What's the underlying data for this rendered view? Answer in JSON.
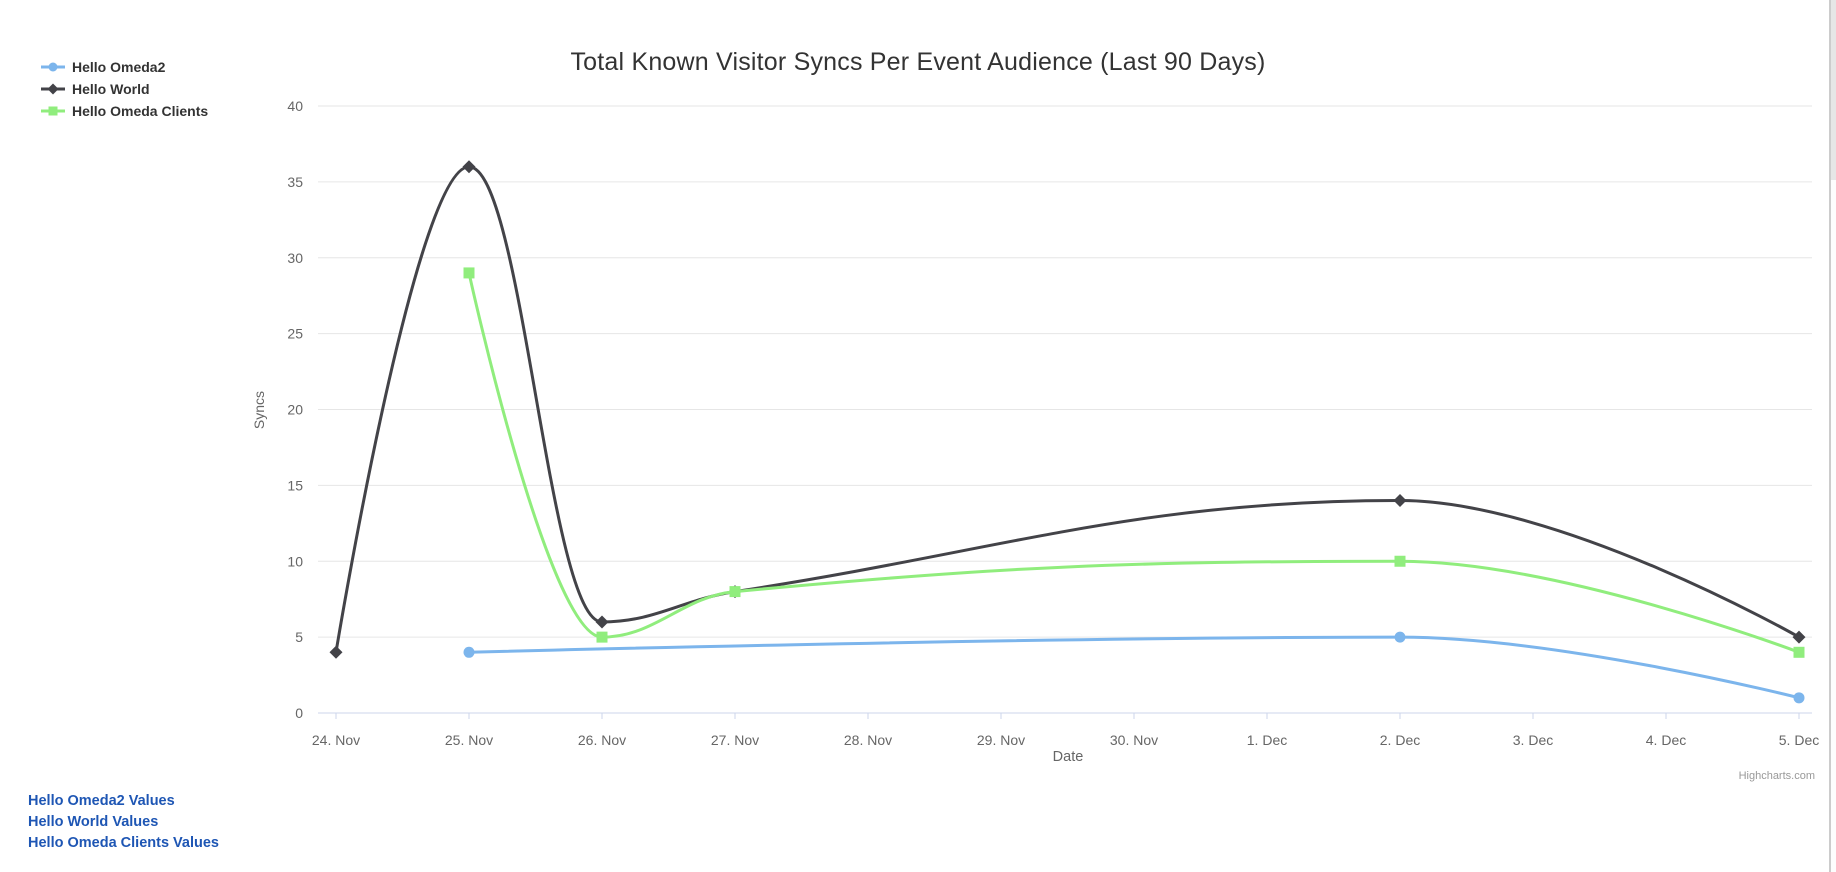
{
  "chart": {
    "credits": "Highcharts.com",
    "colors": {
      "background": "#ffffff",
      "title": "#333333",
      "axis_labels": "#666666",
      "axis_titles": "#666666",
      "axis_line": "#ccd6eb",
      "gridline": "#e6e6e6",
      "credits": "#999999",
      "legend_text": "#333333",
      "link": "#1e56b4"
    }
  },
  "chart_data": {
    "type": "line",
    "line_style": "spline",
    "title": "Total Known Visitor Syncs Per Event Audience (Last 90 Days)",
    "xlabel": "Date",
    "ylabel": "Syncs",
    "x_categories": [
      "24. Nov",
      "25. Nov",
      "26. Nov",
      "27. Nov",
      "28. Nov",
      "29. Nov",
      "30. Nov",
      "1. Dec",
      "2. Dec",
      "3. Dec",
      "4. Dec",
      "5. Dec"
    ],
    "ylim": [
      0,
      40
    ],
    "y_ticks": [
      0,
      5,
      10,
      15,
      20,
      25,
      30,
      35,
      40
    ],
    "grid": true,
    "legend_position": "top-left",
    "series": [
      {
        "name": "Hello Omeda2",
        "color": "#7cb5ec",
        "marker": "circle",
        "points": [
          [
            "25. Nov",
            4
          ],
          [
            "2. Dec",
            5
          ],
          [
            "5. Dec",
            1
          ]
        ]
      },
      {
        "name": "Hello World",
        "color": "#434348",
        "marker": "diamond",
        "points": [
          [
            "24. Nov",
            4
          ],
          [
            "25. Nov",
            36
          ],
          [
            "26. Nov",
            6
          ],
          [
            "27. Nov",
            8
          ],
          [
            "2. Dec",
            14
          ],
          [
            "5. Dec",
            5
          ]
        ]
      },
      {
        "name": "Hello Omeda Clients",
        "color": "#90ed7d",
        "marker": "square",
        "points": [
          [
            "25. Nov",
            29
          ],
          [
            "26. Nov",
            5
          ],
          [
            "27. Nov",
            8
          ],
          [
            "2. Dec",
            10
          ],
          [
            "5. Dec",
            4
          ]
        ]
      }
    ]
  },
  "links": [
    "Hello Omeda2 Values",
    "Hello World Values",
    "Hello Omeda Clients Values"
  ]
}
